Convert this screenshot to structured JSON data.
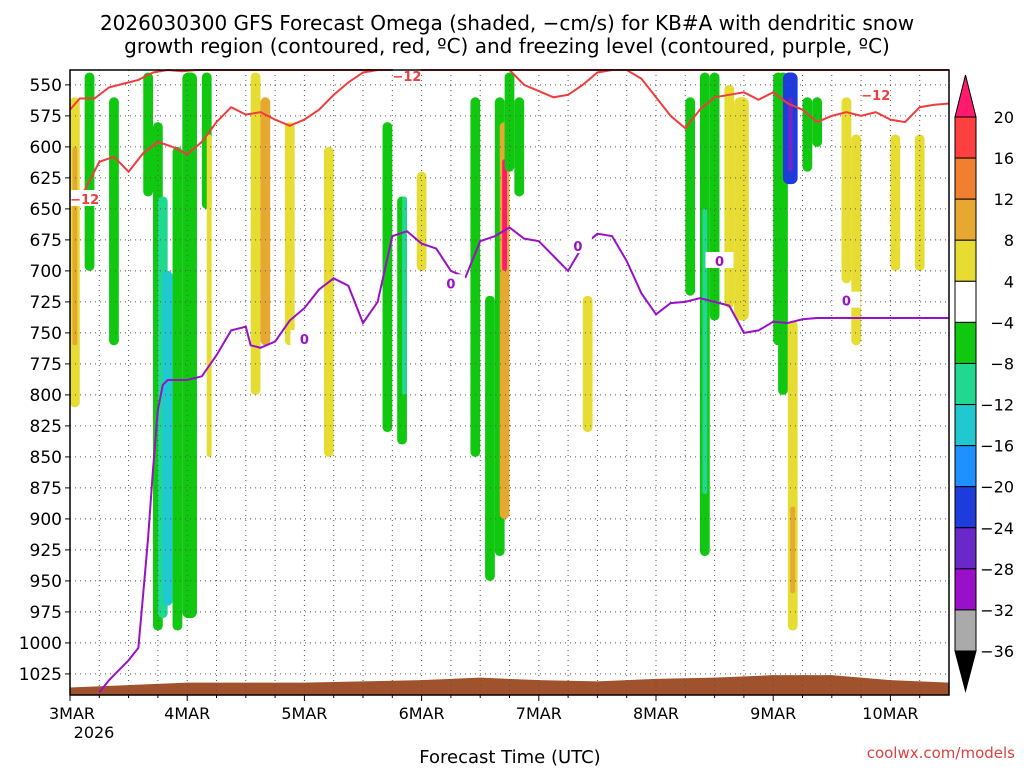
{
  "chart_data": {
    "type": "heatmap",
    "title_line1": "2026030300 GFS Forecast Omega (shaded, −cm/s) for KB#A with dendritic snow",
    "title_line2": "growth region (contoured, red, ºC) and freezing level (contoured, purple, ºC)",
    "xlabel": "Forecast Time (UTC)",
    "credit": "coolwx.com/models",
    "x_ticks": [
      "3MAR",
      "4MAR",
      "5MAR",
      "6MAR",
      "7MAR",
      "8MAR",
      "9MAR",
      "10MAR"
    ],
    "x_year": "2026",
    "xlim_hours": [
      0,
      180
    ],
    "y_ticks": [
      550,
      575,
      600,
      625,
      650,
      675,
      700,
      725,
      750,
      775,
      800,
      825,
      850,
      875,
      900,
      925,
      950,
      975,
      1000,
      1025
    ],
    "ylim_hpa": [
      538,
      1042
    ],
    "grid": "dotted",
    "legend": "right colorbar",
    "colorbar": {
      "labels": [
        "20",
        "16",
        "12",
        "8",
        "4",
        "−4",
        "−8",
        "−12",
        "−16",
        "−20",
        "−24",
        "−28",
        "−32",
        "−36"
      ],
      "colors": [
        "#ff1a6e",
        "#ff4040",
        "#f08030",
        "#e6a830",
        "#e6dc32",
        "#ffffff",
        "#10c810",
        "#20d890",
        "#20c8d0",
        "#1e90ff",
        "#1e3cdc",
        "#6a28c8",
        "#9a10c8",
        "#aaaaaa",
        "#000000"
      ]
    },
    "contour_labels": {
      "dgz": "−12",
      "freezing": "0"
    },
    "freezing_level": {
      "hours": [
        6,
        8,
        10,
        12,
        14,
        15,
        16,
        17,
        18,
        19,
        20,
        21,
        24,
        27,
        30,
        33,
        36,
        37,
        39,
        42,
        45,
        48,
        51,
        54,
        57,
        60,
        63,
        66,
        69,
        72,
        75,
        78,
        81,
        84,
        87,
        90,
        93,
        96,
        99,
        102,
        105,
        108,
        111,
        114,
        117,
        120,
        123,
        126,
        129,
        132,
        135,
        138,
        141,
        144,
        147,
        150,
        153,
        156,
        159,
        162,
        165,
        168,
        171,
        174,
        177,
        180
      ],
      "pressure": [
        1040,
        1030,
        1022,
        1014,
        1004,
        960,
        915,
        860,
        812,
        792,
        788,
        788,
        788,
        785,
        768,
        748,
        745,
        760,
        762,
        757,
        740,
        730,
        715,
        706,
        712,
        742,
        725,
        672,
        668,
        678,
        682,
        700,
        705,
        676,
        672,
        665,
        674,
        676,
        688,
        700,
        680,
        670,
        672,
        692,
        718,
        735,
        726,
        725,
        722,
        725,
        728,
        750,
        748,
        741,
        742,
        739,
        738,
        738,
        738,
        738,
        738,
        738,
        738,
        738,
        738,
        738
      ]
    },
    "dgz_top": {
      "hours": [
        0,
        2,
        5,
        8,
        11,
        14,
        17,
        20,
        23,
        26,
        29,
        32,
        35,
        38,
        41,
        44,
        47,
        50,
        53,
        56,
        59,
        62,
        65,
        68,
        71,
        74,
        77,
        80,
        83,
        86,
        89,
        92,
        95,
        98,
        101,
        104,
        107
      ],
      "pressure": [
        570,
        561,
        561,
        552,
        549,
        546,
        540,
        538,
        539,
        538,
        538,
        538,
        538,
        538,
        538,
        538,
        538,
        538,
        538,
        538,
        538,
        538,
        538,
        538,
        538,
        538,
        538,
        538,
        538,
        538,
        538,
        538,
        538,
        538,
        538,
        538,
        538
      ]
    },
    "dgz_bottom": {
      "hours": [
        0,
        3,
        6,
        9,
        12,
        15,
        18,
        21,
        24,
        27,
        30,
        33,
        36,
        39,
        42,
        45,
        48,
        51,
        54,
        57,
        60,
        63,
        66,
        69,
        72,
        75,
        78,
        81,
        84,
        87,
        90,
        93,
        96,
        99,
        102,
        105,
        108,
        111,
        114,
        117,
        120,
        123,
        126,
        129,
        132,
        135,
        138,
        141,
        144,
        147,
        150,
        153,
        156,
        159,
        162,
        165,
        168,
        171,
        174,
        177,
        180
      ],
      "pressure": [
        640,
        635,
        612,
        608,
        620,
        605,
        596,
        600,
        606,
        596,
        580,
        568,
        574,
        572,
        578,
        583,
        578,
        570,
        558,
        548,
        540,
        538,
        538,
        538,
        538,
        538,
        538,
        538,
        538,
        538,
        538,
        538,
        538,
        538,
        538,
        538,
        538,
        538,
        538,
        538,
        538,
        538,
        538,
        538,
        538,
        538,
        538,
        538,
        538,
        538,
        538,
        538,
        538,
        538,
        538,
        538,
        538,
        538,
        538,
        538,
        538
      ]
    },
    "dgz_lower_right": {
      "hours": [
        90,
        93,
        96,
        99,
        102,
        105,
        108,
        111,
        114,
        117,
        120,
        123,
        126,
        129,
        132,
        135,
        138,
        141,
        144,
        147,
        150,
        153,
        156,
        159,
        162,
        165,
        168,
        171,
        174,
        177,
        180
      ],
      "pressure": [
        538,
        550,
        555,
        560,
        558,
        550,
        540,
        538,
        538,
        545,
        560,
        575,
        585,
        570,
        560,
        558,
        556,
        562,
        556,
        565,
        570,
        580,
        575,
        572,
        575,
        572,
        578,
        580,
        568,
        566,
        565
      ]
    },
    "omega_cells": [
      {
        "h": [
          0,
          2
        ],
        "p": [
          560,
          810
        ],
        "v": 6
      },
      {
        "h": [
          0.5,
          1.5
        ],
        "p": [
          600,
          760
        ],
        "v": 10
      },
      {
        "h": [
          3,
          5
        ],
        "p": [
          540,
          700
        ],
        "v": -6
      },
      {
        "h": [
          8,
          10
        ],
        "p": [
          560,
          760
        ],
        "v": -6
      },
      {
        "h": [
          15,
          17
        ],
        "p": [
          540,
          640
        ],
        "v": -6
      },
      {
        "h": [
          17,
          19
        ],
        "p": [
          580,
          990
        ],
        "v": -6
      },
      {
        "h": [
          18,
          20
        ],
        "p": [
          640,
          980
        ],
        "v": -10
      },
      {
        "h": [
          19,
          21
        ],
        "p": [
          700,
          970
        ],
        "v": -14
      },
      {
        "h": [
          21,
          23
        ],
        "p": [
          600,
          990
        ],
        "v": -6
      },
      {
        "h": [
          23,
          26
        ],
        "p": [
          540,
          980
        ],
        "v": -6
      },
      {
        "h": [
          27,
          29
        ],
        "p": [
          540,
          650
        ],
        "v": -6
      },
      {
        "h": [
          28,
          29
        ],
        "p": [
          590,
          850
        ],
        "v": 6
      },
      {
        "h": [
          37,
          39
        ],
        "p": [
          540,
          800
        ],
        "v": 6
      },
      {
        "h": [
          39,
          41
        ],
        "p": [
          560,
          760
        ],
        "v": 10
      },
      {
        "h": [
          44,
          46
        ],
        "p": [
          580,
          760
        ],
        "v": 6
      },
      {
        "h": [
          52,
          54
        ],
        "p": [
          600,
          850
        ],
        "v": 6
      },
      {
        "h": [
          64,
          66
        ],
        "p": [
          580,
          830
        ],
        "v": -6
      },
      {
        "h": [
          67,
          69
        ],
        "p": [
          640,
          840
        ],
        "v": -6
      },
      {
        "h": [
          68,
          69
        ],
        "p": [
          640,
          800
        ],
        "v": -10
      },
      {
        "h": [
          71,
          73
        ],
        "p": [
          620,
          700
        ],
        "v": 6
      },
      {
        "h": [
          82,
          84
        ],
        "p": [
          560,
          850
        ],
        "v": -6
      },
      {
        "h": [
          85,
          87
        ],
        "p": [
          720,
          950
        ],
        "v": -6
      },
      {
        "h": [
          87,
          89
        ],
        "p": [
          560,
          930
        ],
        "v": -6
      },
      {
        "h": [
          88,
          90
        ],
        "p": [
          580,
          900
        ],
        "v": 10
      },
      {
        "h": [
          88.5,
          89.5
        ],
        "p": [
          610,
          700
        ],
        "v": 20
      },
      {
        "h": [
          89,
          91
        ],
        "p": [
          540,
          620
        ],
        "v": -6
      },
      {
        "h": [
          91,
          93
        ],
        "p": [
          560,
          640
        ],
        "v": -6
      },
      {
        "h": [
          105,
          107
        ],
        "p": [
          720,
          830
        ],
        "v": 4
      },
      {
        "h": [
          126,
          128
        ],
        "p": [
          560,
          720
        ],
        "v": -6
      },
      {
        "h": [
          129,
          131
        ],
        "p": [
          540,
          930
        ],
        "v": -6
      },
      {
        "h": [
          129.5,
          130.5
        ],
        "p": [
          650,
          880
        ],
        "v": -10
      },
      {
        "h": [
          131,
          133
        ],
        "p": [
          540,
          740
        ],
        "v": -6
      },
      {
        "h": [
          134,
          136
        ],
        "p": [
          550,
          730
        ],
        "v": 6
      },
      {
        "h": [
          136,
          139
        ],
        "p": [
          560,
          740
        ],
        "v": 6
      },
      {
        "h": [
          144,
          146
        ],
        "p": [
          540,
          760
        ],
        "v": -6
      },
      {
        "h": [
          145,
          147
        ],
        "p": [
          540,
          800
        ],
        "v": -6
      },
      {
        "h": [
          146,
          149
        ],
        "p": [
          540,
          630
        ],
        "v": -20
      },
      {
        "h": [
          147,
          148
        ],
        "p": [
          560,
          620
        ],
        "v": -24
      },
      {
        "h": [
          147,
          149
        ],
        "p": [
          740,
          990
        ],
        "v": 6
      },
      {
        "h": [
          147.5,
          148.5
        ],
        "p": [
          890,
          960
        ],
        "v": 10
      },
      {
        "h": [
          150,
          152
        ],
        "p": [
          560,
          620
        ],
        "v": -6
      },
      {
        "h": [
          152,
          154
        ],
        "p": [
          560,
          600
        ],
        "v": -6
      },
      {
        "h": [
          158,
          160
        ],
        "p": [
          560,
          710
        ],
        "v": 4
      },
      {
        "h": [
          160,
          162
        ],
        "p": [
          590,
          760
        ],
        "v": 4
      },
      {
        "h": [
          168,
          170
        ],
        "p": [
          590,
          700
        ],
        "v": 4
      },
      {
        "h": [
          173,
          175
        ],
        "p": [
          590,
          700
        ],
        "v": 4
      }
    ]
  }
}
